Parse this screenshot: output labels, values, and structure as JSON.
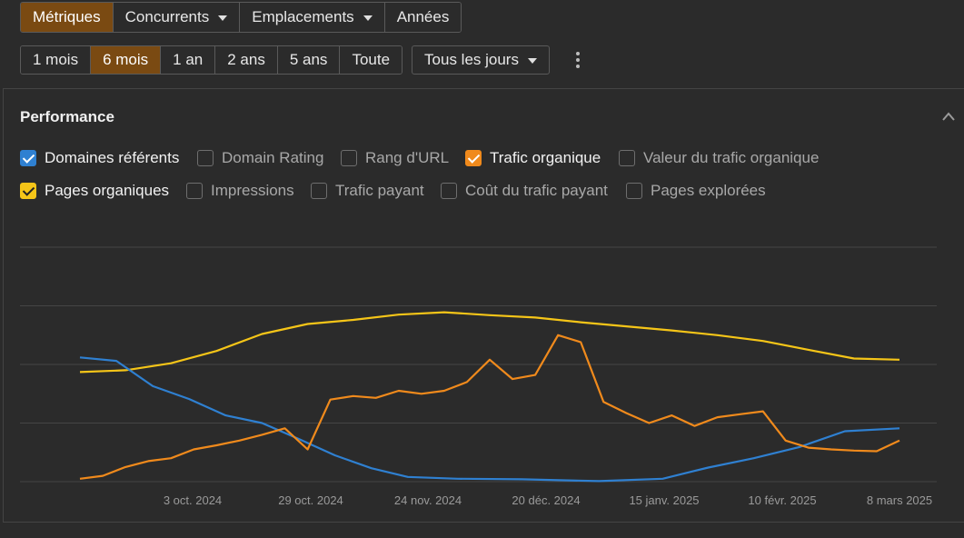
{
  "tabs": [
    {
      "label": "Métriques",
      "active": true,
      "dropdown": false
    },
    {
      "label": "Concurrents",
      "active": false,
      "dropdown": true
    },
    {
      "label": "Emplacements",
      "active": false,
      "dropdown": true
    },
    {
      "label": "Années",
      "active": false,
      "dropdown": false
    }
  ],
  "ranges": [
    {
      "label": "1 mois",
      "active": false
    },
    {
      "label": "6 mois",
      "active": true
    },
    {
      "label": "1 an",
      "active": false
    },
    {
      "label": "2 ans",
      "active": false
    },
    {
      "label": "5 ans",
      "active": false
    },
    {
      "label": "Toute",
      "active": false
    }
  ],
  "days_select": {
    "label": "Tous les jours"
  },
  "panel": {
    "title": "Performance"
  },
  "metrics_row1": [
    {
      "label": "Domaines référents",
      "checked": true,
      "color": "#2f80d1"
    },
    {
      "label": "Domain Rating",
      "checked": false,
      "color": ""
    },
    {
      "label": "Rang d'URL",
      "checked": false,
      "color": ""
    },
    {
      "label": "Trafic organique",
      "checked": true,
      "color": "#f08a1c"
    },
    {
      "label": "Valeur du trafic organique",
      "checked": false,
      "color": ""
    }
  ],
  "metrics_row2": [
    {
      "label": "Pages organiques",
      "checked": true,
      "color": "#f5c518"
    },
    {
      "label": "Impressions",
      "checked": false,
      "color": ""
    },
    {
      "label": "Trafic payant",
      "checked": false,
      "color": ""
    },
    {
      "label": "Coût du trafic payant",
      "checked": false,
      "color": ""
    },
    {
      "label": "Pages explorées",
      "checked": false,
      "color": ""
    }
  ],
  "chart_data": {
    "type": "line",
    "title": "",
    "xlabel": "",
    "ylabel": "",
    "x_tick_labels": [
      "3 oct. 2024",
      "29 oct. 2024",
      "24 nov. 2024",
      "20 déc. 2024",
      "15 janv. 2025",
      "10 févr. 2025",
      "8 mars 2025"
    ],
    "x_range": [
      "2024-09-09",
      "2025-03-08"
    ],
    "y_range": [
      0,
      4
    ],
    "gridlines": 4,
    "y_axis_labels": false,
    "legend": "none",
    "series": [
      {
        "color": "#f5c518",
        "x": [
          "2024-09-09",
          "2024-09-19",
          "2024-09-29",
          "2024-10-09",
          "2024-10-19",
          "2024-10-29",
          "2024-11-08",
          "2024-11-18",
          "2024-11-28",
          "2024-12-08",
          "2024-12-18",
          "2024-12-28",
          "2025-01-07",
          "2025-01-17",
          "2025-01-27",
          "2025-02-06",
          "2025-02-16",
          "2025-02-26",
          "2025-03-08"
        ],
        "values": [
          1.87,
          1.9,
          2.02,
          2.23,
          2.52,
          2.69,
          2.76,
          2.85,
          2.89,
          2.84,
          2.8,
          2.72,
          2.65,
          2.58,
          2.5,
          2.4,
          2.25,
          2.1,
          2.08
        ]
      },
      {
        "color": "#2f80d1",
        "x": [
          "2024-09-09",
          "2024-09-17",
          "2024-09-25",
          "2024-10-03",
          "2024-10-11",
          "2024-10-19",
          "2024-10-27",
          "2024-11-04",
          "2024-11-12",
          "2024-11-20",
          "2024-12-01",
          "2024-12-15",
          "2025-01-01",
          "2025-01-15",
          "2025-01-25",
          "2025-02-04",
          "2025-02-14",
          "2025-02-24",
          "2025-03-08"
        ],
        "values": [
          2.12,
          2.06,
          1.63,
          1.41,
          1.13,
          1.0,
          0.73,
          0.45,
          0.23,
          0.08,
          0.05,
          0.04,
          0.01,
          0.05,
          0.24,
          0.4,
          0.59,
          0.86,
          0.91
        ]
      },
      {
        "color": "#f08a1c",
        "x": [
          "2024-09-09",
          "2024-09-14",
          "2024-09-19",
          "2024-09-24",
          "2024-09-29",
          "2024-10-04",
          "2024-10-09",
          "2024-10-14",
          "2024-10-19",
          "2024-10-24",
          "2024-10-29",
          "2024-11-03",
          "2024-11-08",
          "2024-11-13",
          "2024-11-18",
          "2024-11-23",
          "2024-11-28",
          "2024-12-03",
          "2024-12-08",
          "2024-12-13",
          "2024-12-18",
          "2024-12-23",
          "2024-12-28",
          "2025-01-02",
          "2025-01-07",
          "2025-01-12",
          "2025-01-17",
          "2025-01-22",
          "2025-01-27",
          "2025-02-01",
          "2025-02-06",
          "2025-02-11",
          "2025-02-16",
          "2025-02-21",
          "2025-02-26",
          "2025-03-03",
          "2025-03-08"
        ],
        "values": [
          0.05,
          0.1,
          0.25,
          0.35,
          0.4,
          0.55,
          0.62,
          0.7,
          0.8,
          0.91,
          0.55,
          1.4,
          1.46,
          1.43,
          1.55,
          1.5,
          1.55,
          1.7,
          2.08,
          1.75,
          1.82,
          2.5,
          2.38,
          1.36,
          1.17,
          1.0,
          1.13,
          0.95,
          1.1,
          1.15,
          1.2,
          0.7,
          0.58,
          0.55,
          0.53,
          0.52,
          0.7
        ]
      }
    ]
  }
}
